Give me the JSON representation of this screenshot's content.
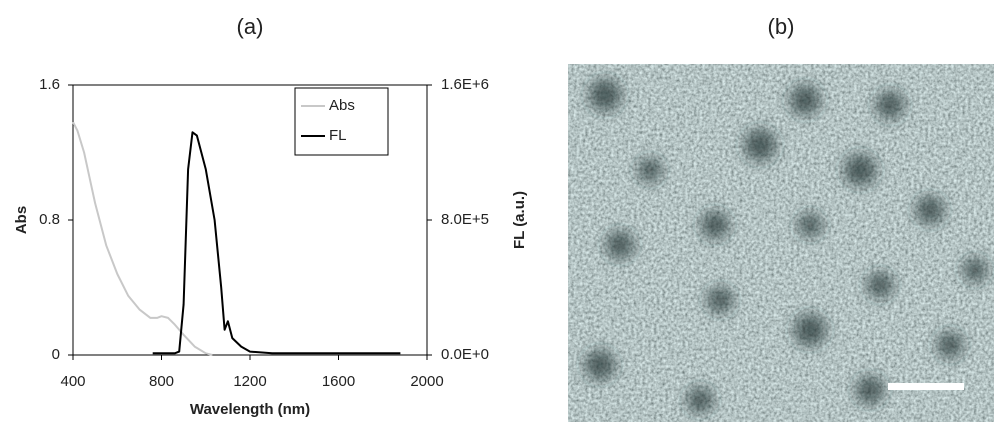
{
  "panel_a_label": "(a)",
  "panel_b_label": "(b)",
  "chart_data": {
    "type": "line",
    "x_label": "Wavelength (nm)",
    "y_label": "Abs",
    "y2_label": "FL (a.u.)",
    "xlim": [
      400,
      2000
    ],
    "xticks": [
      400,
      800,
      1200,
      1600,
      2000
    ],
    "ylim": [
      0,
      1.6
    ],
    "yticks": [
      0,
      0.8,
      1.6
    ],
    "y2lim": [
      0,
      1600000
    ],
    "y2ticks": [
      {
        "value": 0,
        "label": "0.0E+0"
      },
      {
        "value": 800000,
        "label": "8.0E+5"
      },
      {
        "value": 1600000,
        "label": "1.6E+6"
      }
    ],
    "legend": "upper right",
    "series": [
      {
        "name": "Abs",
        "color": "#c8c8c8",
        "axis": "y",
        "x": [
          400,
          420,
          450,
          480,
          500,
          550,
          600,
          650,
          700,
          750,
          780,
          800,
          830,
          860,
          900,
          950,
          1000,
          1030
        ],
        "values": [
          1.38,
          1.33,
          1.2,
          1.02,
          0.9,
          0.65,
          0.48,
          0.35,
          0.27,
          0.22,
          0.22,
          0.23,
          0.22,
          0.18,
          0.12,
          0.05,
          0.01,
          0.0
        ]
      },
      {
        "name": "FL",
        "color": "#000000",
        "axis": "y2",
        "x": [
          760,
          860,
          880,
          900,
          920,
          940,
          960,
          1000,
          1040,
          1070,
          1085,
          1100,
          1120,
          1160,
          1200,
          1300,
          1500,
          1880
        ],
        "values": [
          10000,
          10000,
          20000,
          300000,
          1100000,
          1320000,
          1300000,
          1100000,
          800000,
          400000,
          150000,
          200000,
          100000,
          50000,
          20000,
          10000,
          10000,
          10000
        ]
      }
    ]
  }
}
